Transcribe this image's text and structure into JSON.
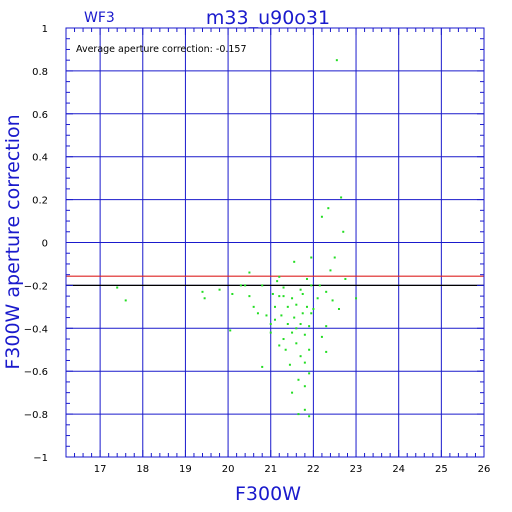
{
  "header": {
    "camera": "WF3",
    "title": "m33_u90o31"
  },
  "annotation": "Average aperture correction: -0.157",
  "chart_data": {
    "type": "scatter",
    "title": "m33_u90o31",
    "xlabel": "F300W",
    "ylabel": "F300W aperture correction",
    "xlim": [
      16.2,
      26
    ],
    "ylim": [
      -1,
      1
    ],
    "x_ticks": [
      17,
      18,
      19,
      20,
      21,
      22,
      23,
      24,
      25,
      26
    ],
    "y_ticks": [
      -1,
      -0.8,
      -0.6,
      -0.4,
      -0.2,
      0,
      0.2,
      0.4,
      0.6,
      0.8,
      1
    ],
    "x_tick_labels": [
      "17",
      "18",
      "19",
      "20",
      "21",
      "22",
      "23",
      "24",
      "25",
      "26"
    ],
    "y_tick_labels": [
      "−1",
      "−0.8",
      "−0.6",
      "−0.4",
      "−0.2",
      "0",
      "0.2",
      "0.4",
      "0.6",
      "0.8",
      "1"
    ],
    "grid": true,
    "reference_lines": [
      {
        "y": -0.157,
        "color": "#dd2222"
      },
      {
        "y": -0.2,
        "color": "#000000"
      }
    ],
    "colors": {
      "points": "#22dd22",
      "axes": "#1a1acc",
      "grid": "#1a1acc"
    },
    "points": [
      [
        17.4,
        -0.21
      ],
      [
        17.6,
        -0.27
      ],
      [
        19.4,
        -0.23
      ],
      [
        19.45,
        -0.26
      ],
      [
        19.8,
        -0.22
      ],
      [
        20.05,
        -0.41
      ],
      [
        20.1,
        -0.24
      ],
      [
        20.3,
        -0.2
      ],
      [
        20.4,
        -0.2
      ],
      [
        20.5,
        -0.14
      ],
      [
        20.5,
        -0.25
      ],
      [
        20.6,
        -0.3
      ],
      [
        20.7,
        -0.33
      ],
      [
        20.8,
        -0.58
      ],
      [
        20.8,
        -0.2
      ],
      [
        20.9,
        -0.34
      ],
      [
        21.0,
        -0.42
      ],
      [
        21.0,
        -0.38
      ],
      [
        21.05,
        -0.24
      ],
      [
        21.1,
        -0.36
      ],
      [
        21.1,
        -0.3
      ],
      [
        21.15,
        -0.18
      ],
      [
        21.2,
        -0.48
      ],
      [
        21.2,
        -0.25
      ],
      [
        21.2,
        -0.16
      ],
      [
        21.25,
        -0.34
      ],
      [
        21.3,
        -0.45
      ],
      [
        21.3,
        -0.25
      ],
      [
        21.3,
        -0.21
      ],
      [
        21.35,
        -0.5
      ],
      [
        21.4,
        -0.38
      ],
      [
        21.4,
        -0.3
      ],
      [
        21.45,
        -0.57
      ],
      [
        21.5,
        -0.7
      ],
      [
        21.5,
        -0.42
      ],
      [
        21.5,
        -0.26
      ],
      [
        21.55,
        -0.09
      ],
      [
        21.55,
        -0.35
      ],
      [
        21.6,
        -0.47
      ],
      [
        21.6,
        -0.4
      ],
      [
        21.6,
        -0.29
      ],
      [
        21.65,
        -0.8
      ],
      [
        21.65,
        -0.64
      ],
      [
        21.7,
        -0.53
      ],
      [
        21.7,
        -0.38
      ],
      [
        21.7,
        -0.22
      ],
      [
        21.75,
        -0.33
      ],
      [
        21.75,
        -0.24
      ],
      [
        21.8,
        -0.78
      ],
      [
        21.8,
        -0.67
      ],
      [
        21.8,
        -0.56
      ],
      [
        21.8,
        -0.43
      ],
      [
        21.85,
        -0.3
      ],
      [
        21.85,
        -0.17
      ],
      [
        21.9,
        -0.81
      ],
      [
        21.9,
        -0.61
      ],
      [
        21.9,
        -0.5
      ],
      [
        21.9,
        -0.39
      ],
      [
        21.95,
        -0.33
      ],
      [
        21.95,
        -0.2
      ],
      [
        21.95,
        -0.07
      ],
      [
        22.0,
        -0.31
      ],
      [
        22.1,
        -0.26
      ],
      [
        22.15,
        -0.2
      ],
      [
        22.2,
        -0.44
      ],
      [
        22.2,
        0.12
      ],
      [
        22.3,
        -0.39
      ],
      [
        22.3,
        -0.23
      ],
      [
        22.3,
        -0.51
      ],
      [
        22.35,
        0.16
      ],
      [
        22.4,
        -0.13
      ],
      [
        22.45,
        -0.27
      ],
      [
        22.5,
        -0.07
      ],
      [
        22.55,
        0.85
      ],
      [
        22.6,
        -0.31
      ],
      [
        22.65,
        0.21
      ],
      [
        22.7,
        0.05
      ],
      [
        22.75,
        -0.17
      ],
      [
        23.0,
        -0.26
      ]
    ]
  }
}
